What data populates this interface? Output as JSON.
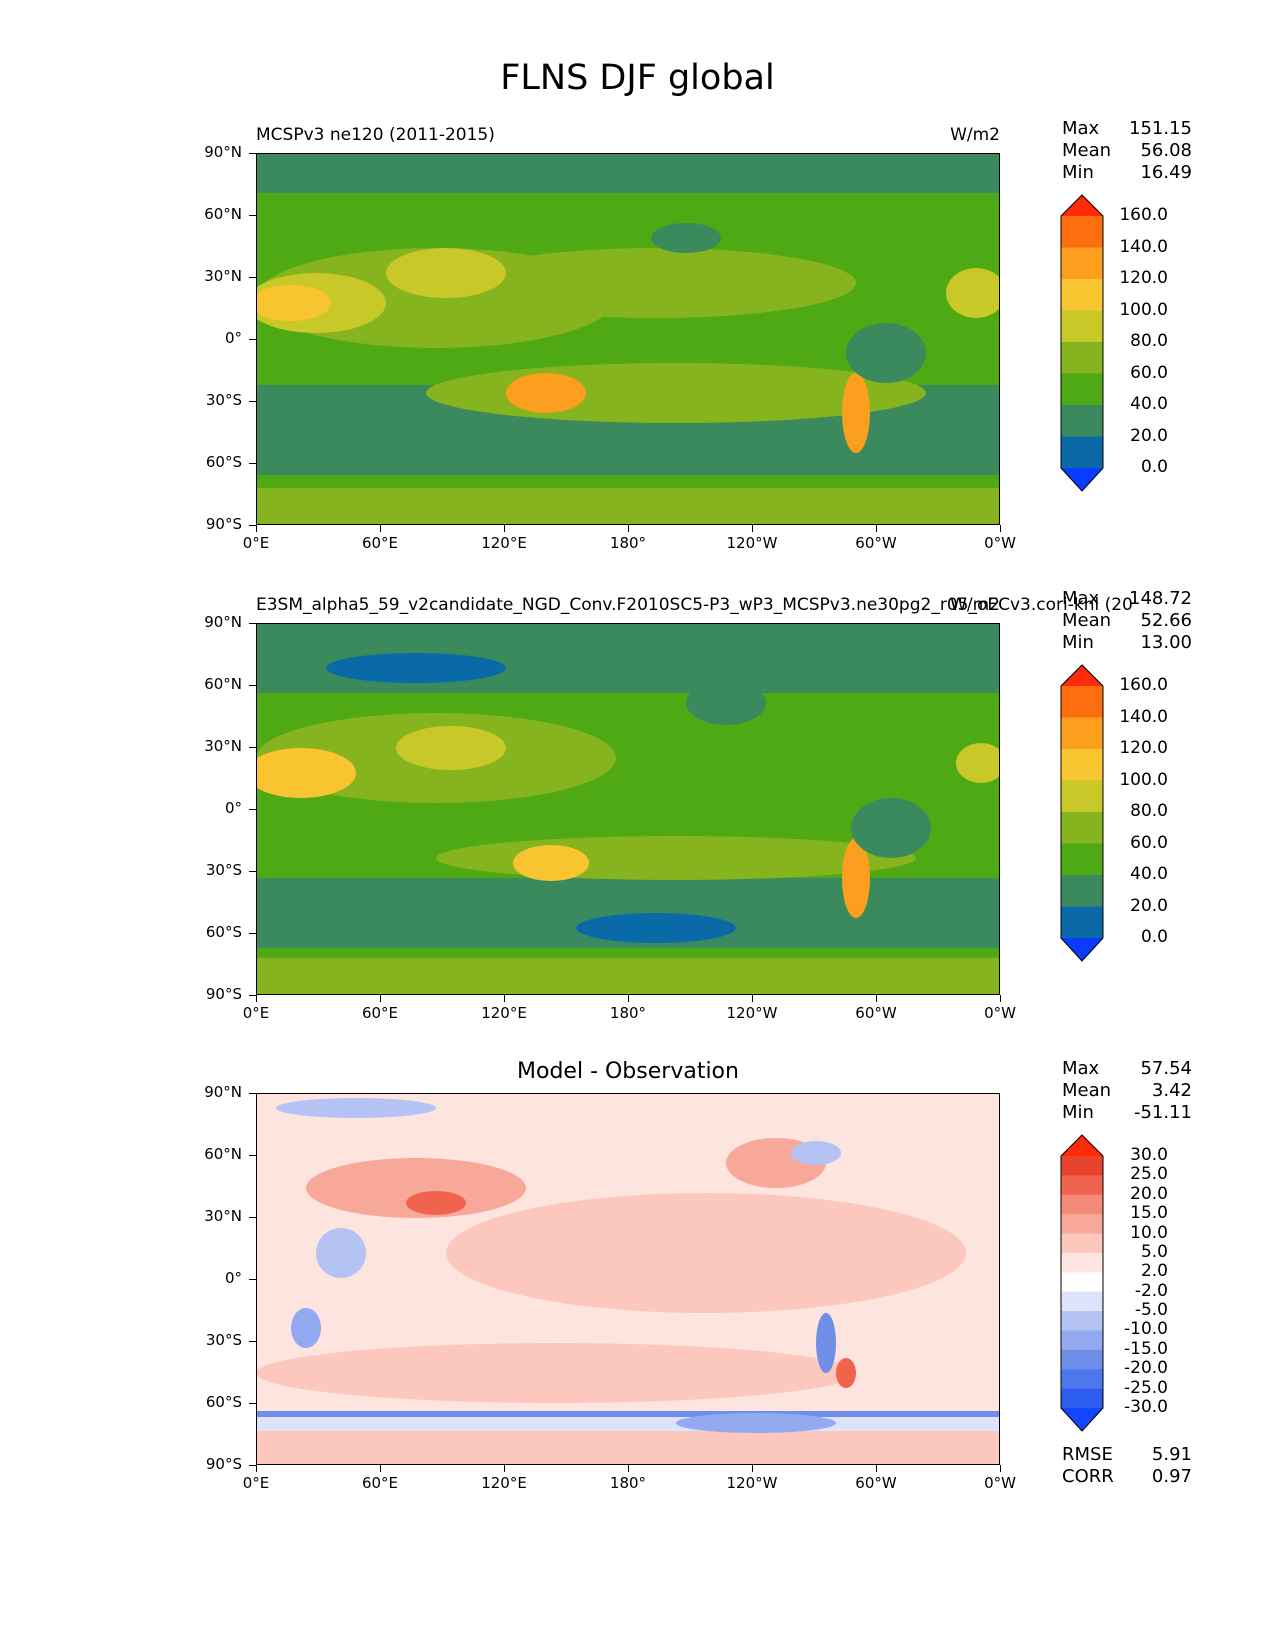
{
  "figure_title": "FLNS DJF global",
  "colors": {
    "seq": [
      "#0a3cff",
      "#0a6aa8",
      "#3a8a5e",
      "#4ea915",
      "#85b41e",
      "#c8c829",
      "#f8c530",
      "#fc9e1e",
      "#fd6e0f",
      "#ff2a0a"
    ],
    "diff": [
      "#1445ff",
      "#2c5df0",
      "#4d77ec",
      "#6f8ee8",
      "#93aaf0",
      "#b4c3f4",
      "#dde3fb",
      "#ffffff",
      "#fde4df",
      "#fcc8bd",
      "#f8a898",
      "#f58a78",
      "#f0644f",
      "#e8432e",
      "#ff2a0a"
    ]
  },
  "panels": [
    {
      "name": "test",
      "left_title": "MCSPv3 ne120 (2011-2015)",
      "right_title": "W/m2",
      "stats": {
        "max_label": "Max",
        "max": "151.15",
        "mean_label": "Mean",
        "mean": "56.08",
        "min_label": "Min",
        "min": "16.49"
      }
    },
    {
      "name": "reference",
      "left_title": "E3SM_alpha5_59_v2candidate_NGD_Conv.F2010SC5-P3_wP3_MCSPv3.ne30pg2_r05_oECv3.cori-knl (20",
      "right_title": "W/m2",
      "stats": {
        "max_label": "Max",
        "max": "148.72",
        "mean_label": "Mean",
        "mean": "52.66",
        "min_label": "Min",
        "min": "13.00"
      }
    },
    {
      "name": "difference",
      "center_title": "Model - Observation",
      "stats": {
        "max_label": "Max",
        "max": "57.54",
        "mean_label": "Mean",
        "mean": "3.42",
        "min_label": "Min",
        "min": "-51.11"
      },
      "footer": {
        "rmse_label": "RMSE",
        "rmse": "5.91",
        "corr_label": "CORR",
        "corr": "0.97"
      }
    }
  ],
  "chart_data": [
    {
      "type": "heatmap",
      "title": "MCSPv3 ne120 (2011-2015)",
      "units": "W/m2",
      "xlabel": "",
      "ylabel": "",
      "x_ticks": [
        "0°E",
        "60°E",
        "120°E",
        "180°",
        "120°W",
        "60°W",
        "0°W"
      ],
      "y_ticks": [
        "90°N",
        "60°N",
        "30°N",
        "0°",
        "30°S",
        "60°S",
        "90°S"
      ],
      "xlim": [
        0,
        360
      ],
      "ylim": [
        -90,
        90
      ],
      "colorbar_levels": [
        "0.0",
        "20.0",
        "40.0",
        "60.0",
        "80.0",
        "100.0",
        "120.0",
        "140.0",
        "160.0"
      ],
      "stats": {
        "max": 151.15,
        "mean": 56.08,
        "min": 16.49
      }
    },
    {
      "type": "heatmap",
      "title": "E3SM_alpha5_59_v2candidate_NGD_Conv.F2010SC5-P3_wP3_MCSPv3.ne30pg2_r05_oECv3.cori-knl (20",
      "units": "W/m2",
      "x_ticks": [
        "0°E",
        "60°E",
        "120°E",
        "180°",
        "120°W",
        "60°W",
        "0°W"
      ],
      "y_ticks": [
        "90°N",
        "60°N",
        "30°N",
        "0°",
        "30°S",
        "60°S",
        "90°S"
      ],
      "xlim": [
        0,
        360
      ],
      "ylim": [
        -90,
        90
      ],
      "colorbar_levels": [
        "0.0",
        "20.0",
        "40.0",
        "60.0",
        "80.0",
        "100.0",
        "120.0",
        "140.0",
        "160.0"
      ],
      "stats": {
        "max": 148.72,
        "mean": 52.66,
        "min": 13.0
      }
    },
    {
      "type": "heatmap",
      "title": "Model - Observation",
      "x_ticks": [
        "0°E",
        "60°E",
        "120°E",
        "180°",
        "120°W",
        "60°W",
        "0°W"
      ],
      "y_ticks": [
        "90°N",
        "60°N",
        "30°N",
        "0°",
        "30°S",
        "60°S",
        "90°S"
      ],
      "xlim": [
        0,
        360
      ],
      "ylim": [
        -90,
        90
      ],
      "colorbar_levels": [
        "-30.0",
        "-25.0",
        "-20.0",
        "-15.0",
        "-10.0",
        "-5.0",
        "-2.0",
        "2.0",
        "5.0",
        "10.0",
        "15.0",
        "20.0",
        "25.0",
        "30.0"
      ],
      "stats": {
        "max": 57.54,
        "mean": 3.42,
        "min": -51.11
      },
      "rmse": 5.91,
      "corr": 0.97
    }
  ]
}
